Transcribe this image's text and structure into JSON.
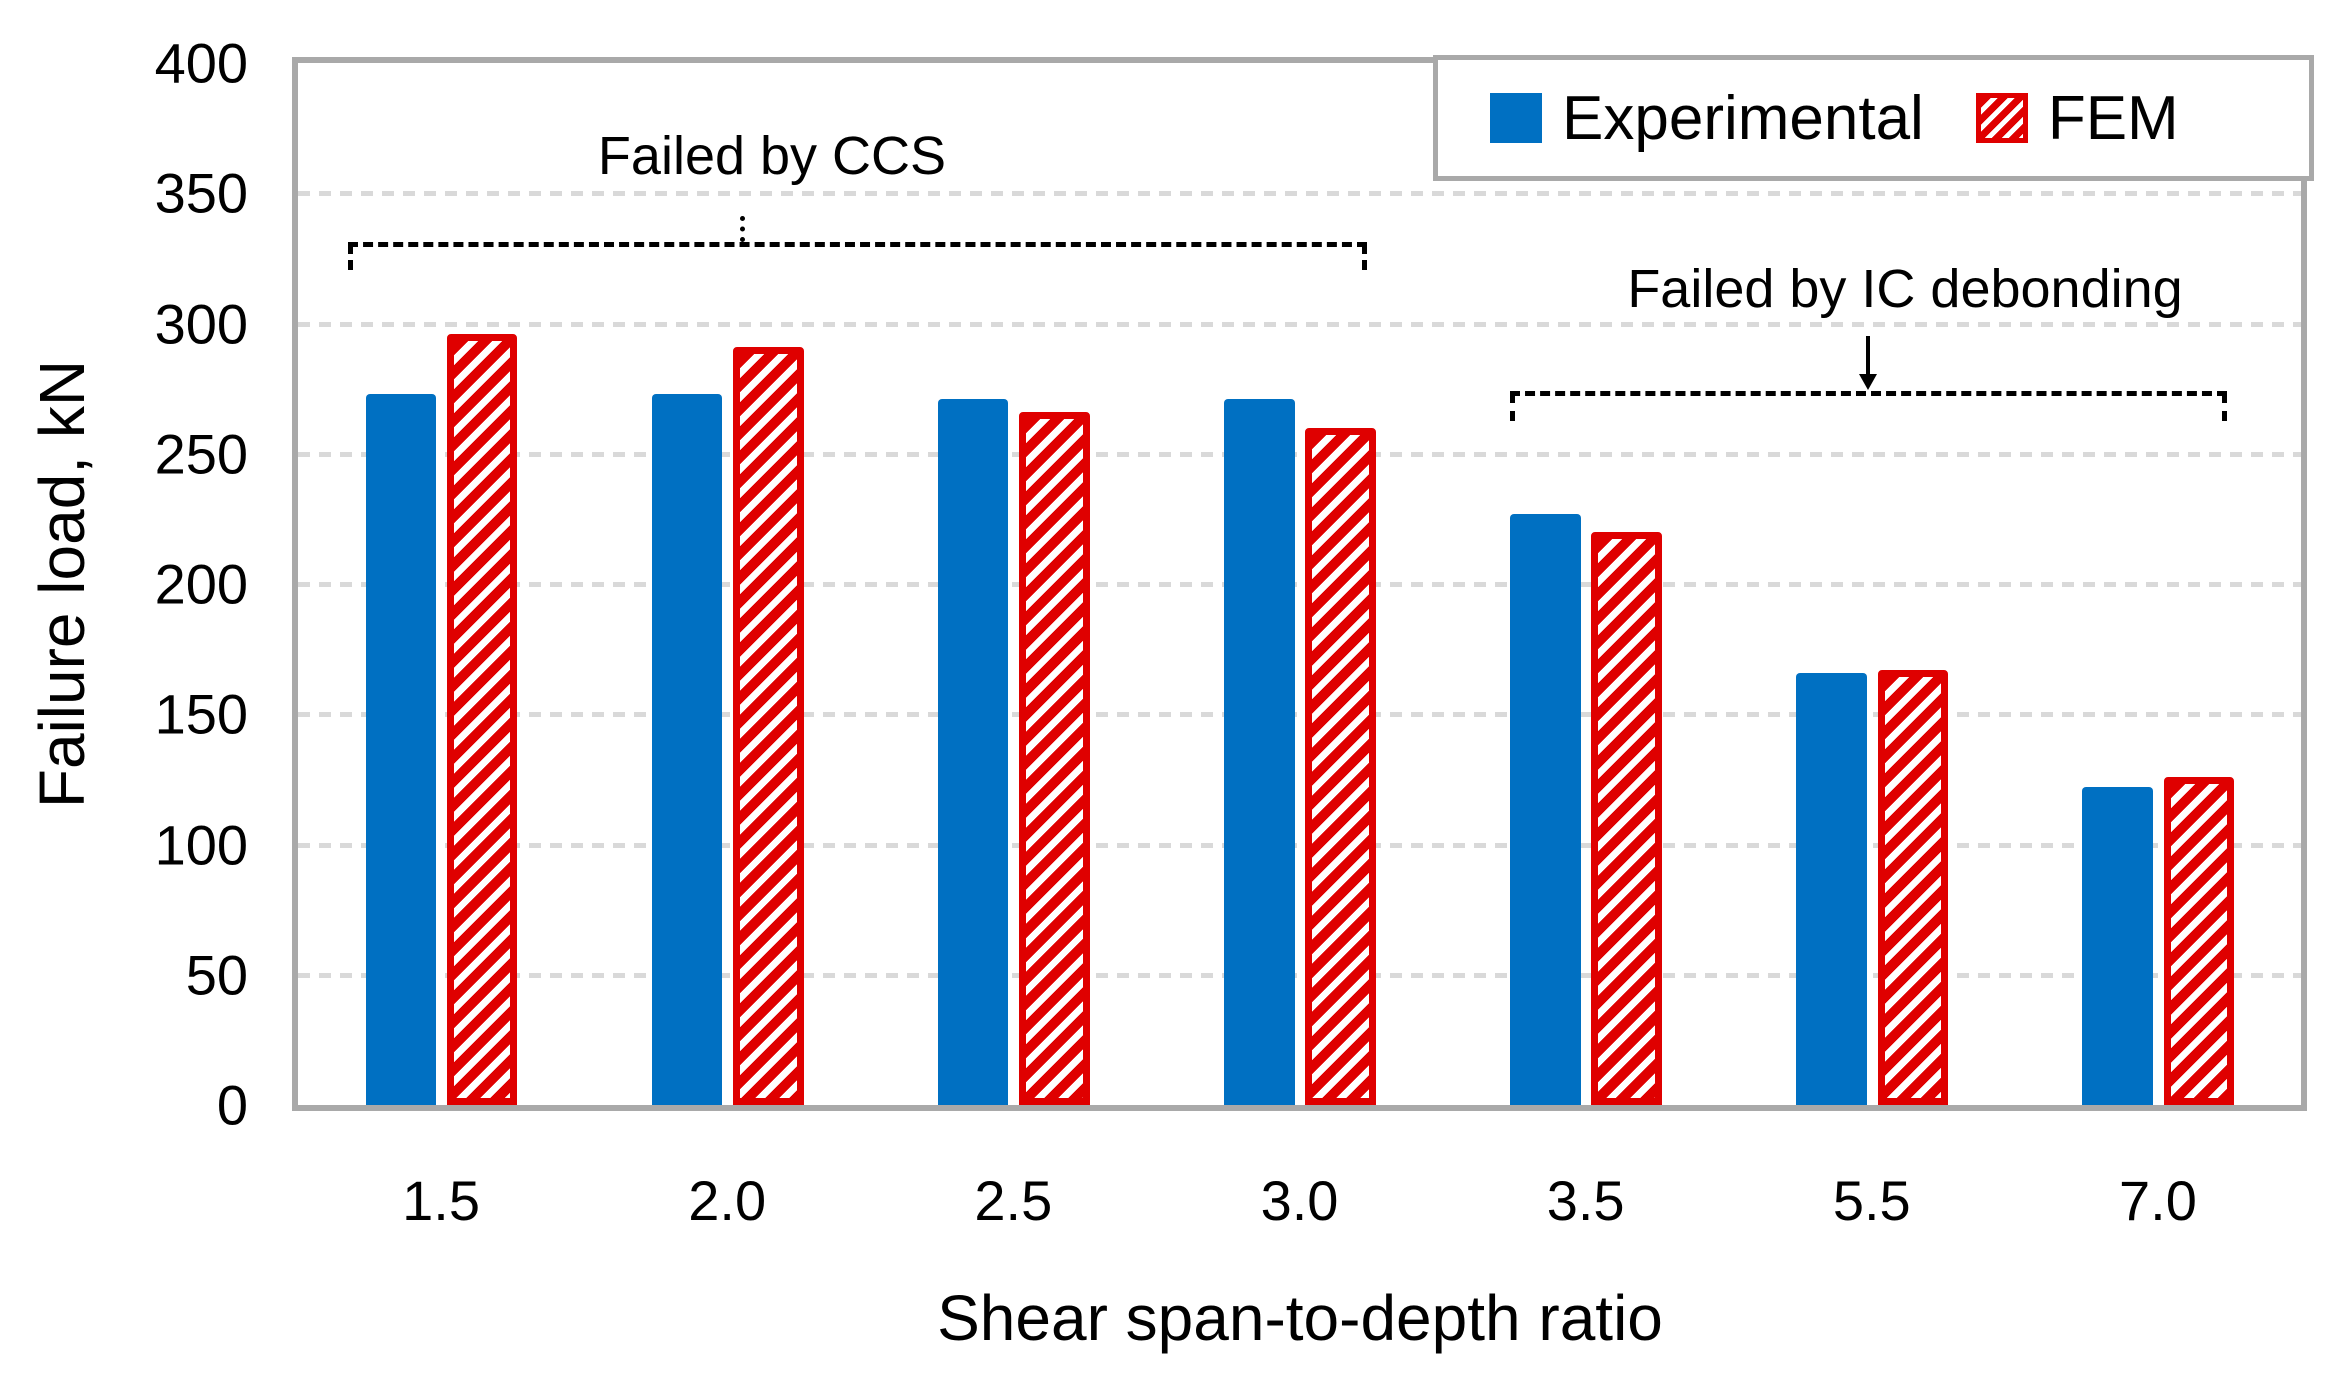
{
  "chart_data": {
    "type": "bar",
    "title": "",
    "categories": [
      "1.5",
      "2.0",
      "2.5",
      "3.0",
      "3.5",
      "5.5",
      "7.0"
    ],
    "series": [
      {
        "name": "Experimental",
        "values": [
          273,
          273,
          271,
          271,
          227,
          166,
          122
        ],
        "color": "#0070C2",
        "pattern": "solid"
      },
      {
        "name": "FEM",
        "values": [
          296,
          291,
          266,
          260,
          220,
          167,
          126
        ],
        "color": "#DF0000",
        "pattern": "diagonal-hatch-on-white"
      }
    ],
    "xlabel": "Shear span-to-depth ratio",
    "ylabel": "Failure load, kN",
    "ylim": [
      0,
      400
    ],
    "ytick_step": 50,
    "yticks": [
      "0",
      "50",
      "100",
      "150",
      "200",
      "250",
      "300",
      "350",
      "400"
    ],
    "grid": "horizontal-dashed",
    "gridline_color": "#D9D9D9",
    "axis_frame_color": "#A9A9A9",
    "legend_position": "top-right-inside",
    "annotations": [
      {
        "text": "Failed by CCS",
        "span_categories": [
          "1.5",
          "3.0"
        ],
        "bracket": "dashed-down-hooks"
      },
      {
        "text": "Failed by IC debonding",
        "span_categories": [
          "3.5",
          "7.0"
        ],
        "bracket": "dashed-down-hooks"
      }
    ]
  },
  "legend": {
    "items": [
      {
        "label": "Experimental",
        "swatch": "solid-blue-square"
      },
      {
        "label": "FEM",
        "swatch": "red-diagonal-hatch-square"
      }
    ]
  }
}
